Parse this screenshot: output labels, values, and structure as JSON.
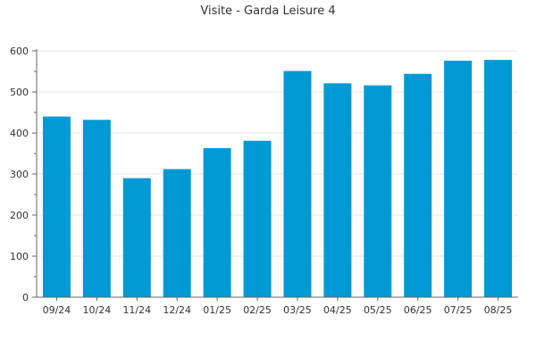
{
  "chart_data": {
    "type": "bar",
    "title": "Visite - Garda Leisure 4",
    "xlabel": "",
    "ylabel": "",
    "categories": [
      "09/24",
      "10/24",
      "11/24",
      "12/24",
      "01/25",
      "02/25",
      "03/25",
      "04/25",
      "05/25",
      "06/25",
      "07/25",
      "08/25"
    ],
    "values": [
      440,
      432,
      290,
      312,
      363,
      381,
      551,
      521,
      516,
      544,
      576,
      578
    ],
    "ylim": [
      0,
      600
    ],
    "yticks": [
      0,
      100,
      200,
      300,
      400,
      500,
      600
    ],
    "ytick_labels": [
      "0",
      "100",
      "200",
      "300",
      "400",
      "500",
      "600"
    ],
    "grid": true,
    "legend": "none",
    "colors": {
      "bar": "#0099d5",
      "grid": "#e6e6e6",
      "axis": "#666666",
      "text": "#333333"
    }
  }
}
